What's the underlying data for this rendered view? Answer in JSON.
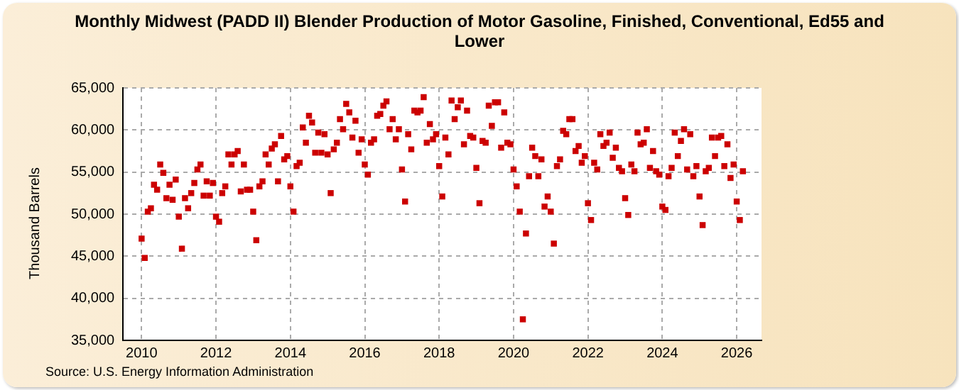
{
  "chart_data": {
    "type": "scatter",
    "title": "Monthly Midwest (PADD II) Blender Production of Motor Gasoline, Finished, Conventional, Ed55 and Lower",
    "ylabel": "Thousand Barrels",
    "annotations": [
      "Source: U.S. Energy Information Administration"
    ],
    "x": [
      "2010-01",
      "2010-02",
      "2010-03",
      "2010-04",
      "2010-05",
      "2010-06",
      "2010-07",
      "2010-08",
      "2010-09",
      "2010-10",
      "2010-11",
      "2010-12",
      "2011-01",
      "2011-02",
      "2011-03",
      "2011-04",
      "2011-05",
      "2011-06",
      "2011-07",
      "2011-08",
      "2011-09",
      "2011-10",
      "2011-11",
      "2011-12",
      "2012-01",
      "2012-02",
      "2012-03",
      "2012-04",
      "2012-05",
      "2012-06",
      "2012-07",
      "2012-08",
      "2012-09",
      "2012-10",
      "2012-11",
      "2012-12",
      "2013-01",
      "2013-02",
      "2013-03",
      "2013-04",
      "2013-05",
      "2013-06",
      "2013-07",
      "2013-08",
      "2013-09",
      "2013-10",
      "2013-11",
      "2013-12",
      "2014-01",
      "2014-02",
      "2014-03",
      "2014-04",
      "2014-05",
      "2014-06",
      "2014-07",
      "2014-08",
      "2014-09",
      "2014-10",
      "2014-11",
      "2014-12",
      "2015-01",
      "2015-02",
      "2015-03",
      "2015-04",
      "2015-05",
      "2015-06",
      "2015-07",
      "2015-08",
      "2015-09",
      "2015-10",
      "2015-11",
      "2015-12",
      "2016-01",
      "2016-02",
      "2016-03",
      "2016-04",
      "2016-05",
      "2016-06",
      "2016-07",
      "2016-08",
      "2016-09",
      "2016-10",
      "2016-11",
      "2016-12",
      "2017-01",
      "2017-02",
      "2017-03",
      "2017-04",
      "2017-05",
      "2017-06",
      "2017-07",
      "2017-08",
      "2017-09",
      "2017-10",
      "2017-11",
      "2017-12",
      "2018-01",
      "2018-02",
      "2018-03",
      "2018-04",
      "2018-05",
      "2018-06",
      "2018-07",
      "2018-08",
      "2018-09",
      "2018-10",
      "2018-11",
      "2018-12",
      "2019-01",
      "2019-02",
      "2019-03",
      "2019-04",
      "2019-05",
      "2019-06",
      "2019-07",
      "2019-08",
      "2019-09",
      "2019-10",
      "2019-11",
      "2019-12",
      "2020-01",
      "2020-02",
      "2020-03",
      "2020-04",
      "2020-05",
      "2020-06",
      "2020-07",
      "2020-08",
      "2020-09",
      "2020-10",
      "2020-11",
      "2020-12",
      "2021-01",
      "2021-02",
      "2021-03",
      "2021-04",
      "2021-05",
      "2021-06",
      "2021-07",
      "2021-08",
      "2021-09",
      "2021-10",
      "2021-11",
      "2021-12",
      "2022-01",
      "2022-02",
      "2022-03",
      "2022-04",
      "2022-05",
      "2022-06",
      "2022-07",
      "2022-08",
      "2022-09",
      "2022-10",
      "2022-11",
      "2022-12",
      "2023-01",
      "2023-02",
      "2023-03",
      "2023-04",
      "2023-05",
      "2023-06",
      "2023-07",
      "2023-08",
      "2023-09",
      "2023-10",
      "2023-11",
      "2023-12",
      "2024-01",
      "2024-02",
      "2024-03",
      "2024-04",
      "2024-05",
      "2024-06",
      "2024-07",
      "2024-08",
      "2024-09",
      "2024-10",
      "2024-11",
      "2024-12",
      "2025-01",
      "2025-02",
      "2025-03",
      "2025-04",
      "2025-05",
      "2025-06",
      "2025-07",
      "2025-08",
      "2025-09",
      "2025-10",
      "2025-11",
      "2025-12",
      "2026-01",
      "2026-02",
      "2026-03"
    ],
    "series": [
      {
        "color": "#cc0000",
        "values": [
          47100,
          44800,
          50300,
          50700,
          53500,
          52900,
          55900,
          54900,
          51900,
          53500,
          51700,
          54100,
          49700,
          45900,
          51900,
          50700,
          52500,
          53700,
          55300,
          55900,
          52200,
          53900,
          52200,
          53700,
          49700,
          49100,
          52500,
          53300,
          57100,
          55900,
          57100,
          57500,
          52700,
          55900,
          52900,
          52900,
          50300,
          46900,
          53300,
          53900,
          57100,
          55900,
          57800,
          58300,
          53900,
          59300,
          56500,
          56900,
          53300,
          50300,
          55700,
          56100,
          60300,
          58500,
          61700,
          60900,
          57300,
          59700,
          57300,
          59500,
          57100,
          52500,
          57700,
          58500,
          61300,
          60100,
          63100,
          62100,
          59100,
          61100,
          57300,
          58900,
          55900,
          54700,
          58500,
          58900,
          61700,
          61900,
          62900,
          63400,
          60100,
          61300,
          58900,
          60100,
          55300,
          51500,
          59500,
          57700,
          62300,
          62100,
          62300,
          63900,
          58500,
          60700,
          58900,
          59500,
          55700,
          52100,
          59100,
          57100,
          63500,
          61300,
          62700,
          63500,
          58300,
          62300,
          59300,
          59100,
          55500,
          51300,
          58700,
          58500,
          62900,
          60500,
          63300,
          63300,
          57900,
          62100,
          58500,
          58300,
          55300,
          53300,
          50300,
          37500,
          47700,
          54500,
          57900,
          56900,
          54500,
          56500,
          50900,
          52100,
          50300,
          46500,
          55700,
          56500,
          59900,
          59500,
          61300,
          61300,
          57500,
          58100,
          56100,
          56900,
          51300,
          49300,
          56100,
          55300,
          59500,
          58100,
          58500,
          59700,
          56700,
          57900,
          55500,
          55100,
          51900,
          49900,
          55900,
          55100,
          59700,
          58300,
          58500,
          60100,
          55500,
          57500,
          55100,
          54700,
          50900,
          50500,
          54500,
          55500,
          59700,
          56900,
          58700,
          60100,
          55300,
          59500,
          54500,
          55700,
          52100,
          48700,
          55100,
          55500,
          59100,
          56900,
          59100,
          59300,
          55700,
          58300,
          54300,
          55900,
          51500,
          49300,
          55100
        ]
      }
    ],
    "xlim": [
      "2009-07",
      "2026-09"
    ],
    "xticks": [
      "2010",
      "2012",
      "2014",
      "2016",
      "2018",
      "2020",
      "2022",
      "2024",
      "2026"
    ],
    "ylim": [
      35000,
      65000
    ],
    "yticks": [
      {
        "value": 35000,
        "label": "35,000"
      },
      {
        "value": 40000,
        "label": "40,000"
      },
      {
        "value": 45000,
        "label": "45,000"
      },
      {
        "value": 50000,
        "label": "50,000"
      },
      {
        "value": 55000,
        "label": "55,000"
      },
      {
        "value": 60000,
        "label": "60,000"
      },
      {
        "value": 65000,
        "label": "65,000"
      }
    ],
    "grid": true,
    "marker": "square",
    "legend": false
  }
}
